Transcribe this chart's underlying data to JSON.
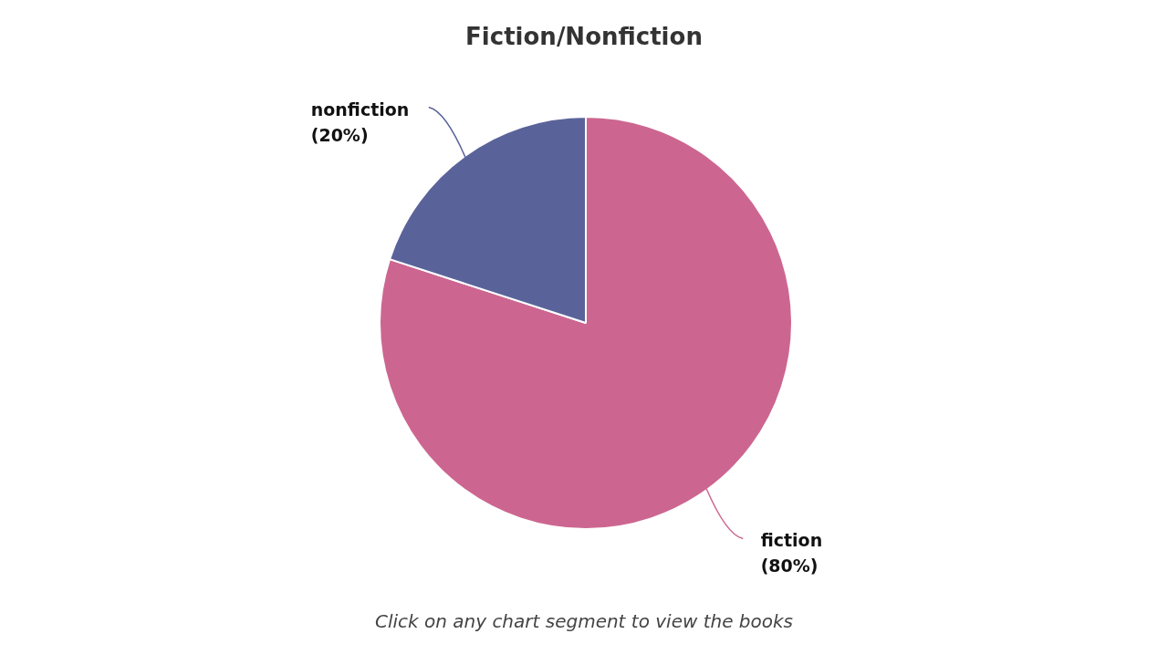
{
  "chart_data": {
    "type": "pie",
    "title": "Fiction/Nonfiction",
    "categories": [
      "fiction",
      "nonfiction"
    ],
    "values": [
      80,
      20
    ],
    "colors": [
      "#cc6690",
      "#5a6399"
    ],
    "value_labels": [
      "(80%)",
      "(20%)"
    ],
    "annotations": [
      "Click on any chart segment to view the books"
    ]
  }
}
